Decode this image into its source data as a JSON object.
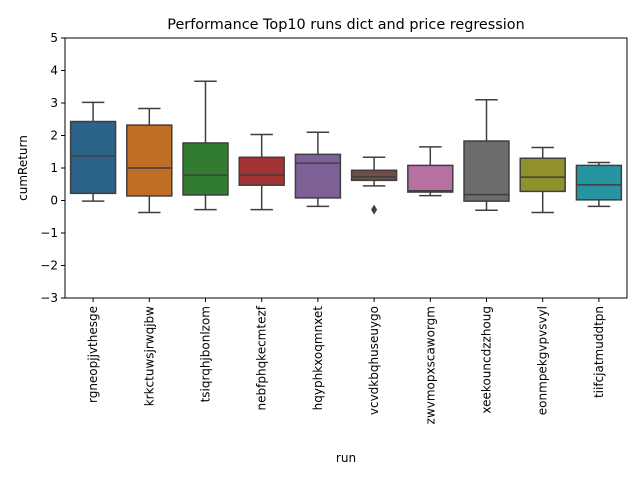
{
  "chart_data": {
    "type": "box",
    "title": "Performance Top10 runs dict and price regression",
    "xlabel": "run",
    "ylabel": "cumReturn",
    "ylim": [
      -3,
      5
    ],
    "yticks": [
      -3,
      -2,
      -1,
      0,
      1,
      2,
      3,
      4,
      5
    ],
    "ytick_labels": [
      "−3",
      "−2",
      "−1",
      "0",
      "1",
      "2",
      "3",
      "4",
      "5"
    ],
    "grid": false,
    "legend": "none",
    "categories": [
      "rgneopjjvthesge",
      "krkctuwsjrwqjbw",
      "tsiqrqhjbonlzom",
      "nebfphqkecmtezf",
      "hqyphkxoqmnxet",
      "vcvdkbqhuseuygo",
      "zwvmopxscaworgm",
      "xeekouncdzzhoug",
      "eonmpekgvpvsvyl",
      "tiifcjatmuddtpn"
    ],
    "boxes": [
      {
        "whisker_low": -0.02,
        "q1": 0.22,
        "median": 1.37,
        "q3": 2.43,
        "whisker_high": 3.02,
        "outliers": []
      },
      {
        "whisker_low": -0.37,
        "q1": 0.14,
        "median": 1.0,
        "q3": 2.32,
        "whisker_high": 2.83,
        "outliers": []
      },
      {
        "whisker_low": -0.28,
        "q1": 0.17,
        "median": 0.78,
        "q3": 1.77,
        "whisker_high": 3.67,
        "outliers": []
      },
      {
        "whisker_low": -0.28,
        "q1": 0.47,
        "median": 0.78,
        "q3": 1.33,
        "whisker_high": 2.03,
        "outliers": []
      },
      {
        "whisker_low": -0.18,
        "q1": 0.08,
        "median": 1.15,
        "q3": 1.42,
        "whisker_high": 2.1,
        "outliers": []
      },
      {
        "whisker_low": 0.45,
        "q1": 0.62,
        "median": 0.73,
        "q3": 0.93,
        "whisker_high": 1.33,
        "outliers": [
          -0.28
        ]
      },
      {
        "whisker_low": 0.15,
        "q1": 0.26,
        "median": 0.3,
        "q3": 1.08,
        "whisker_high": 1.65,
        "outliers": []
      },
      {
        "whisker_low": -0.3,
        "q1": -0.02,
        "median": 0.18,
        "q3": 1.83,
        "whisker_high": 3.1,
        "outliers": []
      },
      {
        "whisker_low": -0.37,
        "q1": 0.28,
        "median": 0.72,
        "q3": 1.3,
        "whisker_high": 1.63,
        "outliers": []
      },
      {
        "whisker_low": -0.18,
        "q1": 0.02,
        "median": 0.48,
        "q3": 1.08,
        "whisker_high": 1.17,
        "outliers": []
      }
    ],
    "colors": [
      "#3274a1",
      "#e1812c",
      "#3a923a",
      "#c03d3e",
      "#9372b2",
      "#845b53",
      "#d684bd",
      "#7f7f7f",
      "#a9aa35",
      "#2eaebe"
    ]
  }
}
